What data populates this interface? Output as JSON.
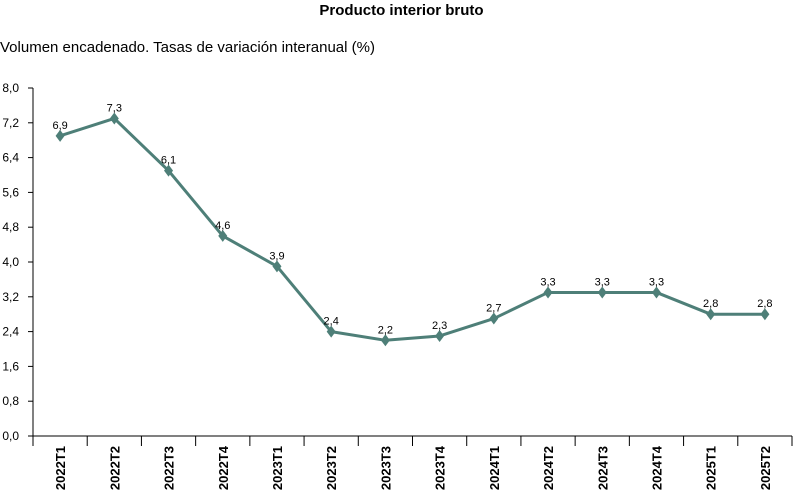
{
  "chart_data": {
    "type": "line",
    "title": "Producto interior bruto",
    "subtitle": "Volumen encadenado. Tasas de variación interanual (%)",
    "xlabel": "",
    "ylabel": "",
    "categories": [
      "2022T1",
      "2022T2",
      "2022T3",
      "2022T4",
      "2023T1",
      "2023T2",
      "2023T3",
      "2023T4",
      "2024T1",
      "2024T2",
      "2024T3",
      "2024T4",
      "2025T1",
      "2025T2"
    ],
    "values": [
      6.9,
      7.3,
      6.1,
      4.6,
      3.9,
      2.4,
      2.2,
      2.3,
      2.7,
      3.3,
      3.3,
      3.3,
      2.8,
      2.8
    ],
    "value_labels": [
      "6,9",
      "7,3",
      "6,1",
      "4,6",
      "3,9",
      "2,4",
      "2,2",
      "2,3",
      "2,7",
      "3,3",
      "3,3",
      "3,3",
      "2,8",
      "2,8"
    ],
    "y_ticks": [
      "0,0",
      "0,8",
      "1,6",
      "2,4",
      "3,2",
      "4,0",
      "4,8",
      "5,6",
      "6,4",
      "7,2",
      "8,0"
    ],
    "ylim": [
      0,
      8
    ],
    "grid": false,
    "legend": "none",
    "line_color": "#4e7f78",
    "axis_color": "#000000"
  }
}
